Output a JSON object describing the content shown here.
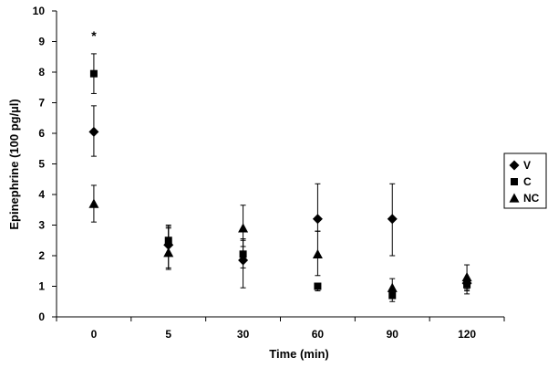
{
  "chart_data": {
    "type": "scatter",
    "categories": [
      "0",
      "5",
      "30",
      "60",
      "90",
      "120"
    ],
    "xlabel": "Time (min)",
    "ylabel": "Epinephrine (100 pg/µl)",
    "ylim": [
      0,
      10
    ],
    "yticks": [
      "0",
      "1",
      "2",
      "3",
      "4",
      "5",
      "6",
      "7",
      "8",
      "9",
      "10"
    ],
    "grid": false,
    "legend_position": "right",
    "series": [
      {
        "name": "V",
        "marker": "diamond",
        "values": [
          6.05,
          2.35,
          1.85,
          3.2,
          3.2,
          1.1
        ],
        "err_low": [
          5.25,
          1.6,
          0.95,
          2.8,
          2.0,
          0.85
        ],
        "err_high": [
          6.9,
          2.95,
          2.55,
          4.35,
          4.35,
          1.25
        ]
      },
      {
        "name": "C",
        "marker": "square",
        "values": [
          7.95,
          2.5,
          2.05,
          1.0,
          0.7,
          1.05
        ],
        "err_low": [
          7.3,
          2.0,
          1.6,
          0.85,
          0.5,
          0.75
        ],
        "err_high": [
          8.6,
          3.0,
          2.5,
          1.1,
          0.75,
          1.2
        ]
      },
      {
        "name": "NC",
        "marker": "triangle",
        "values": [
          3.7,
          2.1,
          2.9,
          2.05,
          0.95,
          1.3
        ],
        "err_low": [
          3.1,
          1.55,
          2.3,
          1.35,
          0.6,
          0.9
        ],
        "err_high": [
          4.3,
          2.9,
          3.65,
          2.8,
          1.25,
          1.7
        ]
      }
    ],
    "annotations": [
      {
        "text": "*",
        "category": "0",
        "y": 9.2
      }
    ]
  }
}
